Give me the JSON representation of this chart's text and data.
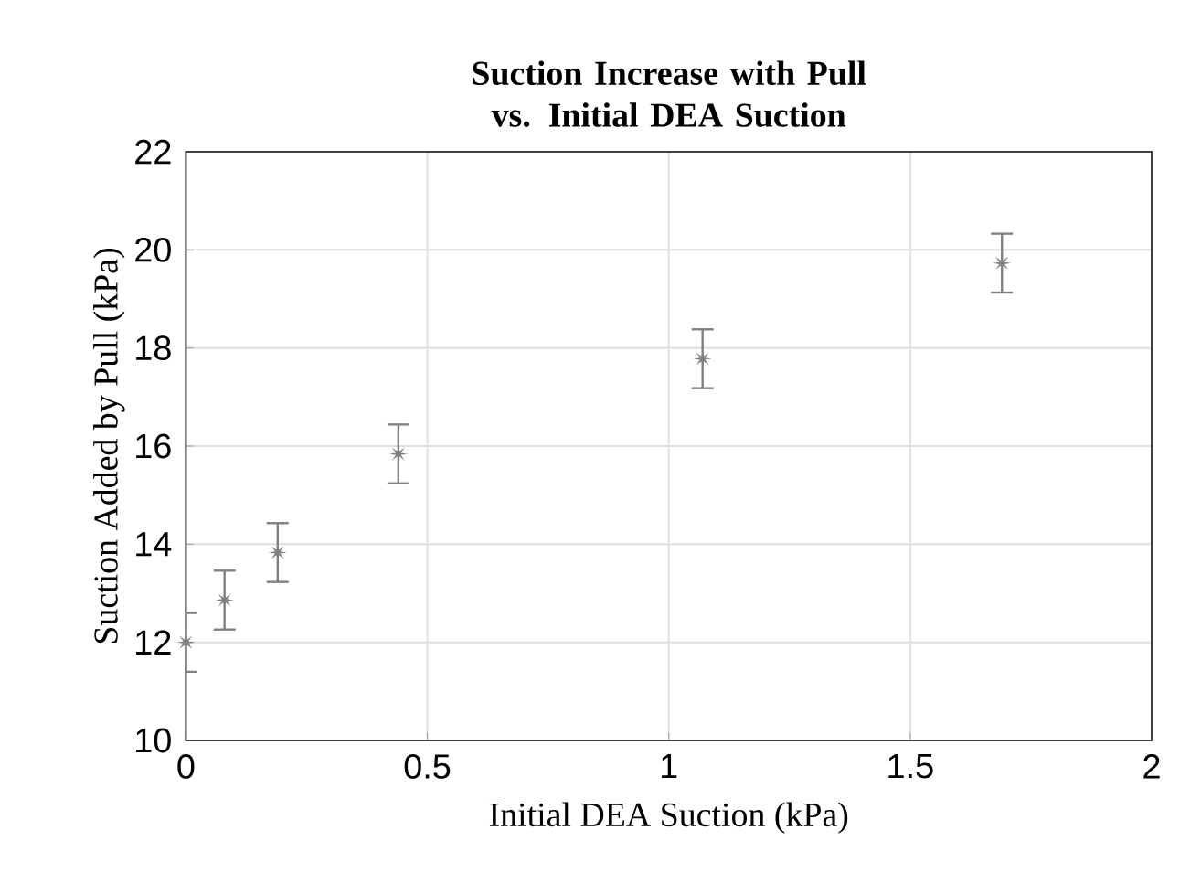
{
  "chart_data": {
    "type": "scatter",
    "title": "Suction Increase with Pull vs. Initial DEA Suction",
    "xlabel": "Initial DEA Suction (kPa)",
    "ylabel": "Suction Added by Pull (kPa)",
    "x": [
      0.0,
      0.08,
      0.19,
      0.44,
      1.07,
      1.69
    ],
    "series": [
      {
        "color": "#808080",
        "values": [
          12.0,
          12.86,
          13.83,
          15.84,
          17.78,
          19.73
        ],
        "errors": [
          0.6,
          0.6,
          0.6,
          0.6,
          0.6,
          0.6
        ]
      }
    ],
    "xlim": [
      0,
      2
    ],
    "ylim": [
      10,
      22
    ],
    "xticks": [
      0,
      0.5,
      1,
      1.5,
      2
    ],
    "yticks": [
      10,
      12,
      14,
      16,
      18,
      20,
      22
    ],
    "grid": true,
    "marker": "star"
  }
}
